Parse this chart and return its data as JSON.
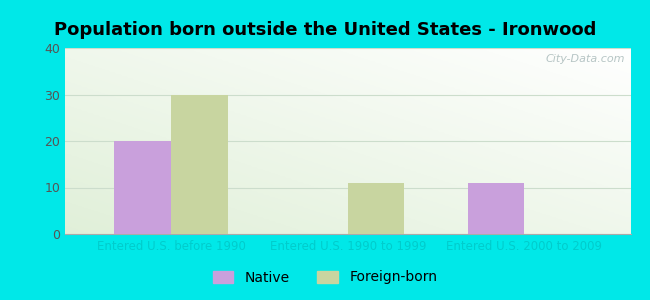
{
  "title": "Population born outside the United States - Ironwood",
  "categories": [
    "Entered U.S. before 1990",
    "Entered U.S. 1990 to 1999",
    "Entered U.S. 2000 to 2009"
  ],
  "native_values": [
    20,
    0,
    11
  ],
  "foreign_values": [
    30,
    11,
    0
  ],
  "native_color": "#c9a0dc",
  "foreign_color": "#c8d5a0",
  "background_outer": "#00e8e8",
  "ylim": [
    0,
    40
  ],
  "yticks": [
    0,
    10,
    20,
    30,
    40
  ],
  "bar_width": 0.32,
  "legend_native": "Native",
  "legend_foreign": "Foreign-born",
  "watermark": "City-Data.com",
  "title_fontsize": 13,
  "xtick_fontsize": 8.5,
  "ytick_fontsize": 9,
  "legend_fontsize": 10,
  "xtick_color": "#00cccc",
  "ytick_color": "#555555",
  "grid_color": "#ccddcc"
}
